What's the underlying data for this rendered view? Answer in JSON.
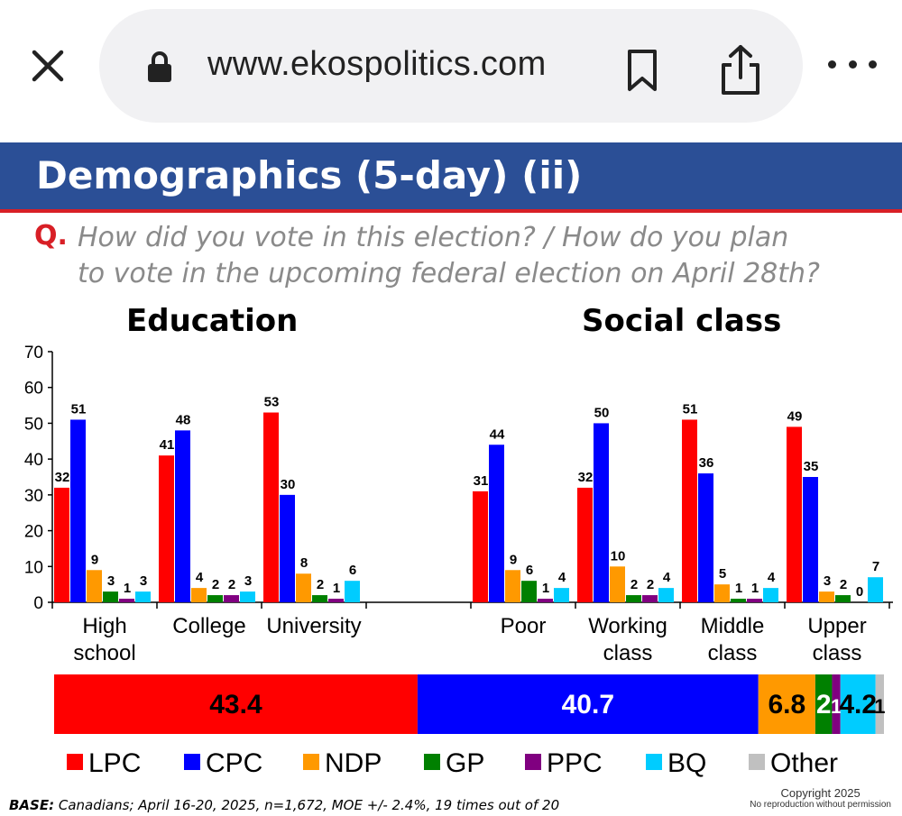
{
  "browser": {
    "url": "www.ekospolitics.com",
    "icons": [
      "close-icon",
      "lock-icon",
      "bookmark-icon",
      "share-icon",
      "more-icon"
    ]
  },
  "slide": {
    "title": "Demographics (5-day) (ii)",
    "q_label": "Q.",
    "question_line1": "How did you vote in this election? / How do you plan",
    "question_line2": "to vote in the upcoming federal election on April 28th?",
    "base_label": "BASE:",
    "base_text": "Canadians; April 16-20, 2025, n=1,672, MOE +/- 2.4%, 19 times out of 20",
    "copyright_line1": "Copyright 2025",
    "copyright_line2": "No reproduction without permission"
  },
  "chart_data": {
    "type": "bar",
    "ylim": [
      0,
      70
    ],
    "yticks": [
      0,
      10,
      20,
      30,
      40,
      50,
      60,
      70
    ],
    "groups": [
      {
        "title": "Education",
        "categories": [
          [
            "High",
            "school"
          ],
          [
            "College"
          ],
          [
            "University"
          ]
        ]
      },
      {
        "title": "Social class",
        "categories": [
          [
            "Poor"
          ],
          [
            "Working",
            "class"
          ],
          [
            "Middle",
            "class"
          ],
          [
            "Upper",
            "class"
          ]
        ]
      }
    ],
    "series": [
      {
        "name": "LPC",
        "color": "#ff0000",
        "values": [
          32,
          41,
          53,
          31,
          32,
          51,
          49
        ]
      },
      {
        "name": "CPC",
        "color": "#0000ff",
        "values": [
          51,
          48,
          30,
          44,
          50,
          36,
          35
        ]
      },
      {
        "name": "NDP",
        "color": "#ff9900",
        "values": [
          9,
          4,
          8,
          9,
          10,
          5,
          3
        ]
      },
      {
        "name": "GP",
        "color": "#008000",
        "values": [
          3,
          2,
          2,
          6,
          2,
          1,
          2
        ]
      },
      {
        "name": "PPC",
        "color": "#800080",
        "values": [
          1,
          2,
          1,
          1,
          2,
          1,
          0
        ]
      },
      {
        "name": "BQ",
        "color": "#00ccff",
        "values": [
          3,
          3,
          6,
          4,
          4,
          4,
          7
        ]
      }
    ],
    "overall": {
      "labels": [
        "43.4",
        "40.7",
        "6.8",
        "2",
        "1",
        "4.2",
        "1"
      ],
      "values": [
        43.4,
        40.7,
        6.8,
        2,
        1,
        4.2,
        1
      ],
      "names": [
        "LPC",
        "CPC",
        "NDP",
        "GP",
        "PPC",
        "BQ",
        "Other"
      ],
      "colors": [
        "#ff0000",
        "#0000ff",
        "#ff9900",
        "#008000",
        "#800080",
        "#00ccff",
        "#c0c0c0"
      ],
      "label_colors": [
        "#000000",
        "#ffffff",
        "#000000",
        "#ffffff",
        "#ffffff",
        "#000000",
        "#000000"
      ]
    },
    "legend": [
      {
        "name": "LPC",
        "color": "#ff0000"
      },
      {
        "name": "CPC",
        "color": "#0000ff"
      },
      {
        "name": "NDP",
        "color": "#ff9900"
      },
      {
        "name": "GP",
        "color": "#008000"
      },
      {
        "name": "PPC",
        "color": "#800080"
      },
      {
        "name": "BQ",
        "color": "#00ccff"
      },
      {
        "name": "Other",
        "color": "#c0c0c0"
      }
    ]
  }
}
